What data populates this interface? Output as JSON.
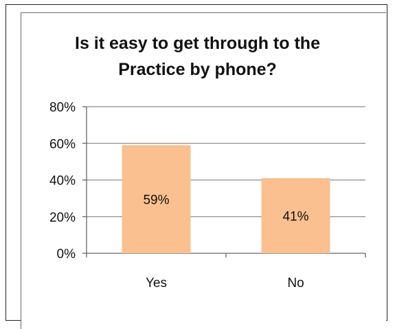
{
  "chart_data": {
    "type": "bar",
    "title": "Is it easy to get through to the\nPractice by phone?",
    "categories": [
      "Yes",
      "No"
    ],
    "values": [
      59,
      41
    ],
    "data_labels": [
      "59%",
      "41%"
    ],
    "xlabel": "",
    "ylabel": "",
    "ylim": [
      0,
      80
    ],
    "yticks": [
      0,
      20,
      40,
      60,
      80
    ],
    "ytick_labels": [
      "0%",
      "20%",
      "40%",
      "60%",
      "80%"
    ],
    "grid": true,
    "legend": "none",
    "bar_color": "#FAC090",
    "grid_color": "#8C8C8C"
  }
}
